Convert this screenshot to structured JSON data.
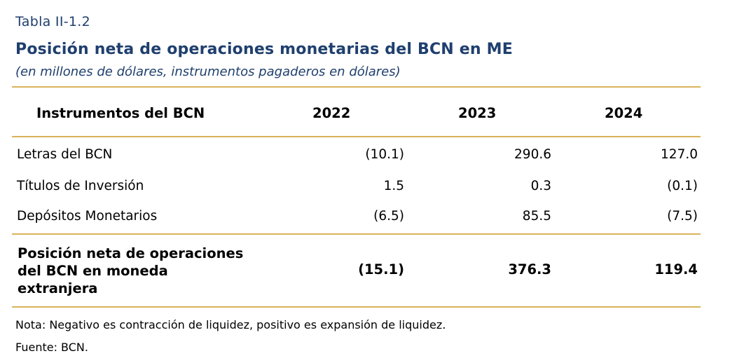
{
  "header": {
    "table_number": "Tabla II-1.2",
    "title": "Posición neta de operaciones monetarias del BCN en ME",
    "subtitle": "(en millones de dólares, instrumentos pagaderos en dólares)"
  },
  "table": {
    "columns": [
      "Instrumentos del BCN",
      "2022",
      "2023",
      "2024"
    ],
    "rows": [
      {
        "label": "Letras del BCN",
        "values": [
          "(10.1)",
          "290.6",
          "127.0"
        ]
      },
      {
        "label": "Títulos de Inversión",
        "values": [
          "1.5",
          "0.3",
          "(0.1)"
        ]
      },
      {
        "label": "Depósitos Monetarios",
        "values": [
          "(6.5)",
          "85.5",
          "(7.5)"
        ]
      }
    ],
    "total": {
      "label": "Posición neta de operaciones del BCN en moneda extranjera",
      "values": [
        "(15.1)",
        "376.3",
        "119.4"
      ]
    }
  },
  "footer": {
    "note": "Nota: Negativo es contracción de liquidez, positivo es expansión de liquidez.",
    "source": "Fuente: BCN."
  },
  "colors": {
    "title_blue": "#1f3f6e",
    "rule_gold": "#d9b35a"
  }
}
